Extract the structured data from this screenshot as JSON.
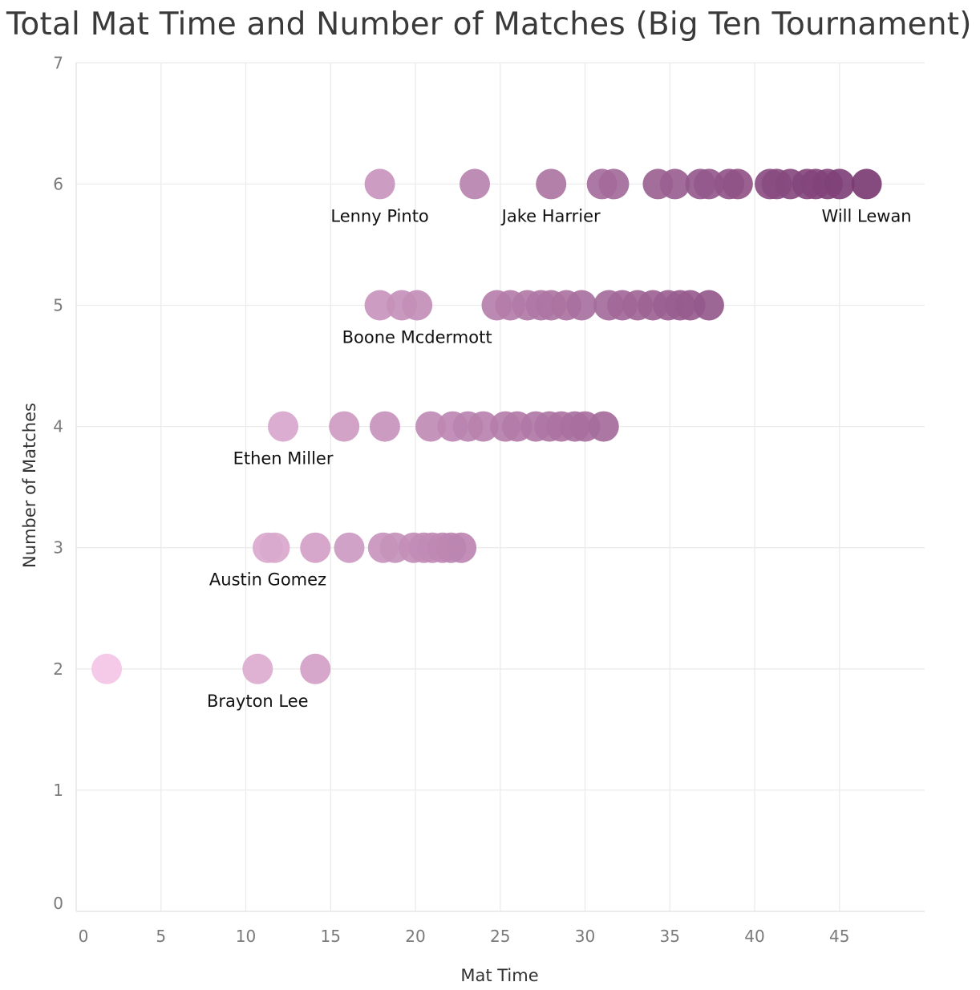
{
  "chart_data": {
    "type": "scatter",
    "title": "Total Mat Time and Number of Matches (Big Ten Tournament)",
    "xlabel": "Mat Time",
    "ylabel": "Number of Matches",
    "xlim": [
      0,
      50
    ],
    "ylim": [
      0,
      7
    ],
    "x_ticks": [
      0,
      5,
      10,
      15,
      20,
      25,
      30,
      35,
      40,
      45
    ],
    "y_ticks": [
      0,
      1,
      2,
      3,
      4,
      5,
      6,
      7
    ],
    "grid": true,
    "color_encoding": "mat time (light pink to dark purple)",
    "colors": {
      "low": "#f4c6e6",
      "high": "#7b3c74"
    },
    "points": [
      {
        "x": 1.8,
        "y": 2
      },
      {
        "x": 10.7,
        "y": 2
      },
      {
        "x": 14.1,
        "y": 2
      },
      {
        "x": 11.3,
        "y": 3
      },
      {
        "x": 11.7,
        "y": 3
      },
      {
        "x": 14.1,
        "y": 3
      },
      {
        "x": 16.1,
        "y": 3
      },
      {
        "x": 18.1,
        "y": 3
      },
      {
        "x": 18.8,
        "y": 3
      },
      {
        "x": 19.9,
        "y": 3
      },
      {
        "x": 20.5,
        "y": 3
      },
      {
        "x": 21.0,
        "y": 3
      },
      {
        "x": 21.6,
        "y": 3
      },
      {
        "x": 22.1,
        "y": 3
      },
      {
        "x": 22.7,
        "y": 3
      },
      {
        "x": 12.2,
        "y": 4
      },
      {
        "x": 15.8,
        "y": 4
      },
      {
        "x": 18.2,
        "y": 4
      },
      {
        "x": 20.9,
        "y": 4
      },
      {
        "x": 22.2,
        "y": 4
      },
      {
        "x": 23.1,
        "y": 4
      },
      {
        "x": 24.0,
        "y": 4
      },
      {
        "x": 25.3,
        "y": 4
      },
      {
        "x": 26.0,
        "y": 4
      },
      {
        "x": 27.1,
        "y": 4
      },
      {
        "x": 27.9,
        "y": 4
      },
      {
        "x": 28.6,
        "y": 4
      },
      {
        "x": 29.4,
        "y": 4
      },
      {
        "x": 30.0,
        "y": 4
      },
      {
        "x": 31.1,
        "y": 4
      },
      {
        "x": 17.9,
        "y": 5
      },
      {
        "x": 19.2,
        "y": 5
      },
      {
        "x": 20.1,
        "y": 5
      },
      {
        "x": 24.8,
        "y": 5
      },
      {
        "x": 25.6,
        "y": 5
      },
      {
        "x": 26.6,
        "y": 5
      },
      {
        "x": 27.4,
        "y": 5
      },
      {
        "x": 28.0,
        "y": 5
      },
      {
        "x": 28.9,
        "y": 5
      },
      {
        "x": 29.8,
        "y": 5
      },
      {
        "x": 31.4,
        "y": 5
      },
      {
        "x": 32.2,
        "y": 5
      },
      {
        "x": 33.1,
        "y": 5
      },
      {
        "x": 34.0,
        "y": 5
      },
      {
        "x": 34.9,
        "y": 5
      },
      {
        "x": 35.6,
        "y": 5
      },
      {
        "x": 36.2,
        "y": 5
      },
      {
        "x": 37.3,
        "y": 5
      },
      {
        "x": 17.9,
        "y": 6
      },
      {
        "x": 23.5,
        "y": 6
      },
      {
        "x": 28.0,
        "y": 6
      },
      {
        "x": 31.0,
        "y": 6
      },
      {
        "x": 31.7,
        "y": 6
      },
      {
        "x": 34.3,
        "y": 6
      },
      {
        "x": 35.3,
        "y": 6
      },
      {
        "x": 36.8,
        "y": 6
      },
      {
        "x": 37.3,
        "y": 6
      },
      {
        "x": 38.5,
        "y": 6
      },
      {
        "x": 39.0,
        "y": 6
      },
      {
        "x": 40.9,
        "y": 6
      },
      {
        "x": 41.3,
        "y": 6
      },
      {
        "x": 42.1,
        "y": 6
      },
      {
        "x": 43.1,
        "y": 6
      },
      {
        "x": 43.6,
        "y": 6
      },
      {
        "x": 44.3,
        "y": 6
      },
      {
        "x": 45.0,
        "y": 6
      },
      {
        "x": 46.6,
        "y": 6
      }
    ],
    "annotations": [
      {
        "text": "Lenny Pinto",
        "x": 17.9,
        "y": 6
      },
      {
        "text": "Jake Harrier",
        "x": 28.0,
        "y": 6
      },
      {
        "text": "Will Lewan",
        "x": 46.6,
        "y": 6
      },
      {
        "text": "Boone Mcdermott",
        "x": 20.1,
        "y": 5
      },
      {
        "text": "Ethen Miller",
        "x": 12.2,
        "y": 4
      },
      {
        "text": "Austin Gomez",
        "x": 11.3,
        "y": 3
      },
      {
        "text": "Brayton Lee",
        "x": 10.7,
        "y": 2
      }
    ]
  }
}
